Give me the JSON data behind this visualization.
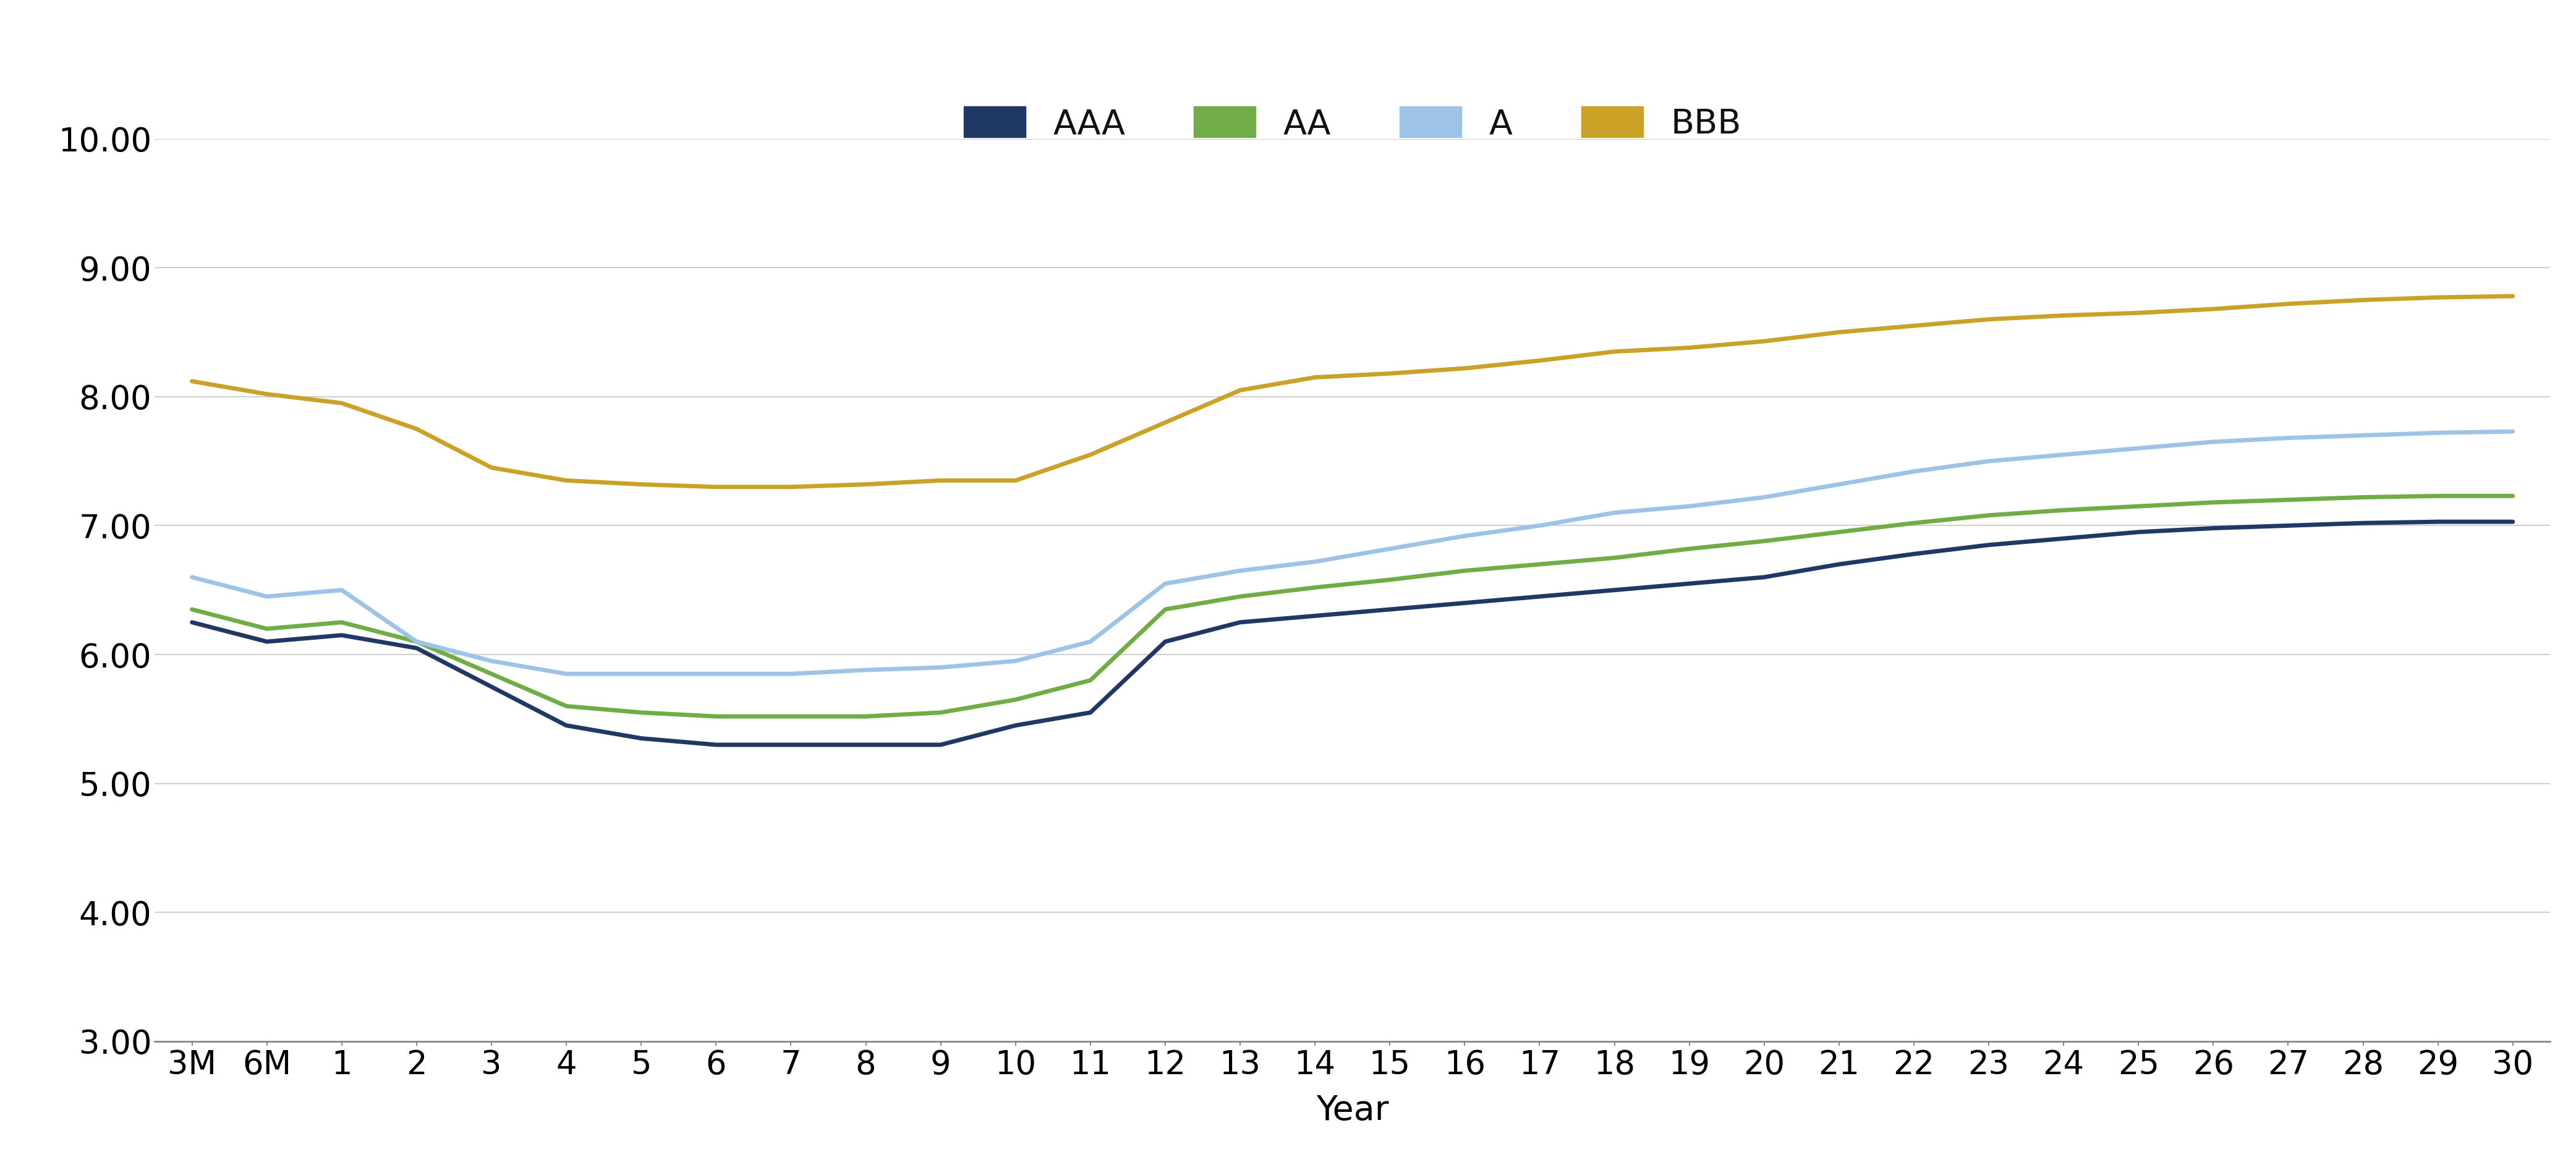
{
  "xlabel": "Year",
  "ylabel": "",
  "x_labels": [
    "3M",
    "6M",
    "1",
    "2",
    "3",
    "4",
    "5",
    "6",
    "7",
    "8",
    "9",
    "10",
    "11",
    "12",
    "13",
    "14",
    "15",
    "16",
    "17",
    "18",
    "19",
    "20",
    "21",
    "22",
    "23",
    "24",
    "25",
    "26",
    "27",
    "28",
    "29",
    "30"
  ],
  "ylim": [
    3.0,
    10.0
  ],
  "yticks": [
    3.0,
    4.0,
    5.0,
    6.0,
    7.0,
    8.0,
    9.0,
    10.0
  ],
  "series": {
    "AAA": {
      "color": "#1f3864",
      "linewidth": 5.0,
      "values": [
        6.25,
        6.1,
        6.15,
        6.05,
        5.75,
        5.45,
        5.35,
        5.3,
        5.3,
        5.3,
        5.3,
        5.45,
        5.55,
        6.1,
        6.25,
        6.3,
        6.35,
        6.4,
        6.45,
        6.5,
        6.55,
        6.6,
        6.7,
        6.78,
        6.85,
        6.9,
        6.95,
        6.98,
        7.0,
        7.02,
        7.03,
        7.03
      ]
    },
    "AA": {
      "color": "#70ad47",
      "linewidth": 5.0,
      "values": [
        6.35,
        6.2,
        6.25,
        6.1,
        5.85,
        5.6,
        5.55,
        5.52,
        5.52,
        5.52,
        5.55,
        5.65,
        5.8,
        6.35,
        6.45,
        6.52,
        6.58,
        6.65,
        6.7,
        6.75,
        6.82,
        6.88,
        6.95,
        7.02,
        7.08,
        7.12,
        7.15,
        7.18,
        7.2,
        7.22,
        7.23,
        7.23
      ]
    },
    "A": {
      "color": "#9dc3e6",
      "linewidth": 5.0,
      "values": [
        6.6,
        6.45,
        6.5,
        6.1,
        5.95,
        5.85,
        5.85,
        5.85,
        5.85,
        5.88,
        5.9,
        5.95,
        6.1,
        6.55,
        6.65,
        6.72,
        6.82,
        6.92,
        7.0,
        7.1,
        7.15,
        7.22,
        7.32,
        7.42,
        7.5,
        7.55,
        7.6,
        7.65,
        7.68,
        7.7,
        7.72,
        7.73
      ]
    },
    "BBB": {
      "color": "#c9a227",
      "linewidth": 5.0,
      "values": [
        8.12,
        8.02,
        7.95,
        7.75,
        7.45,
        7.35,
        7.32,
        7.3,
        7.3,
        7.32,
        7.35,
        7.35,
        7.55,
        7.8,
        8.05,
        8.15,
        8.18,
        8.22,
        8.28,
        8.35,
        8.38,
        8.43,
        8.5,
        8.55,
        8.6,
        8.63,
        8.65,
        8.68,
        8.72,
        8.75,
        8.77,
        8.78
      ]
    }
  },
  "legend": {
    "entries": [
      "AAA",
      "AA",
      "A",
      "BBB"
    ],
    "colors": [
      "#1f3864",
      "#70ad47",
      "#9dc3e6",
      "#c9a227"
    ],
    "loc": "upper center",
    "fontsize": 40,
    "ncol": 4
  },
  "grid_color": "#d0d0d0",
  "background_color": "#ffffff",
  "axis_label_fontsize": 40,
  "tick_fontsize": 38
}
